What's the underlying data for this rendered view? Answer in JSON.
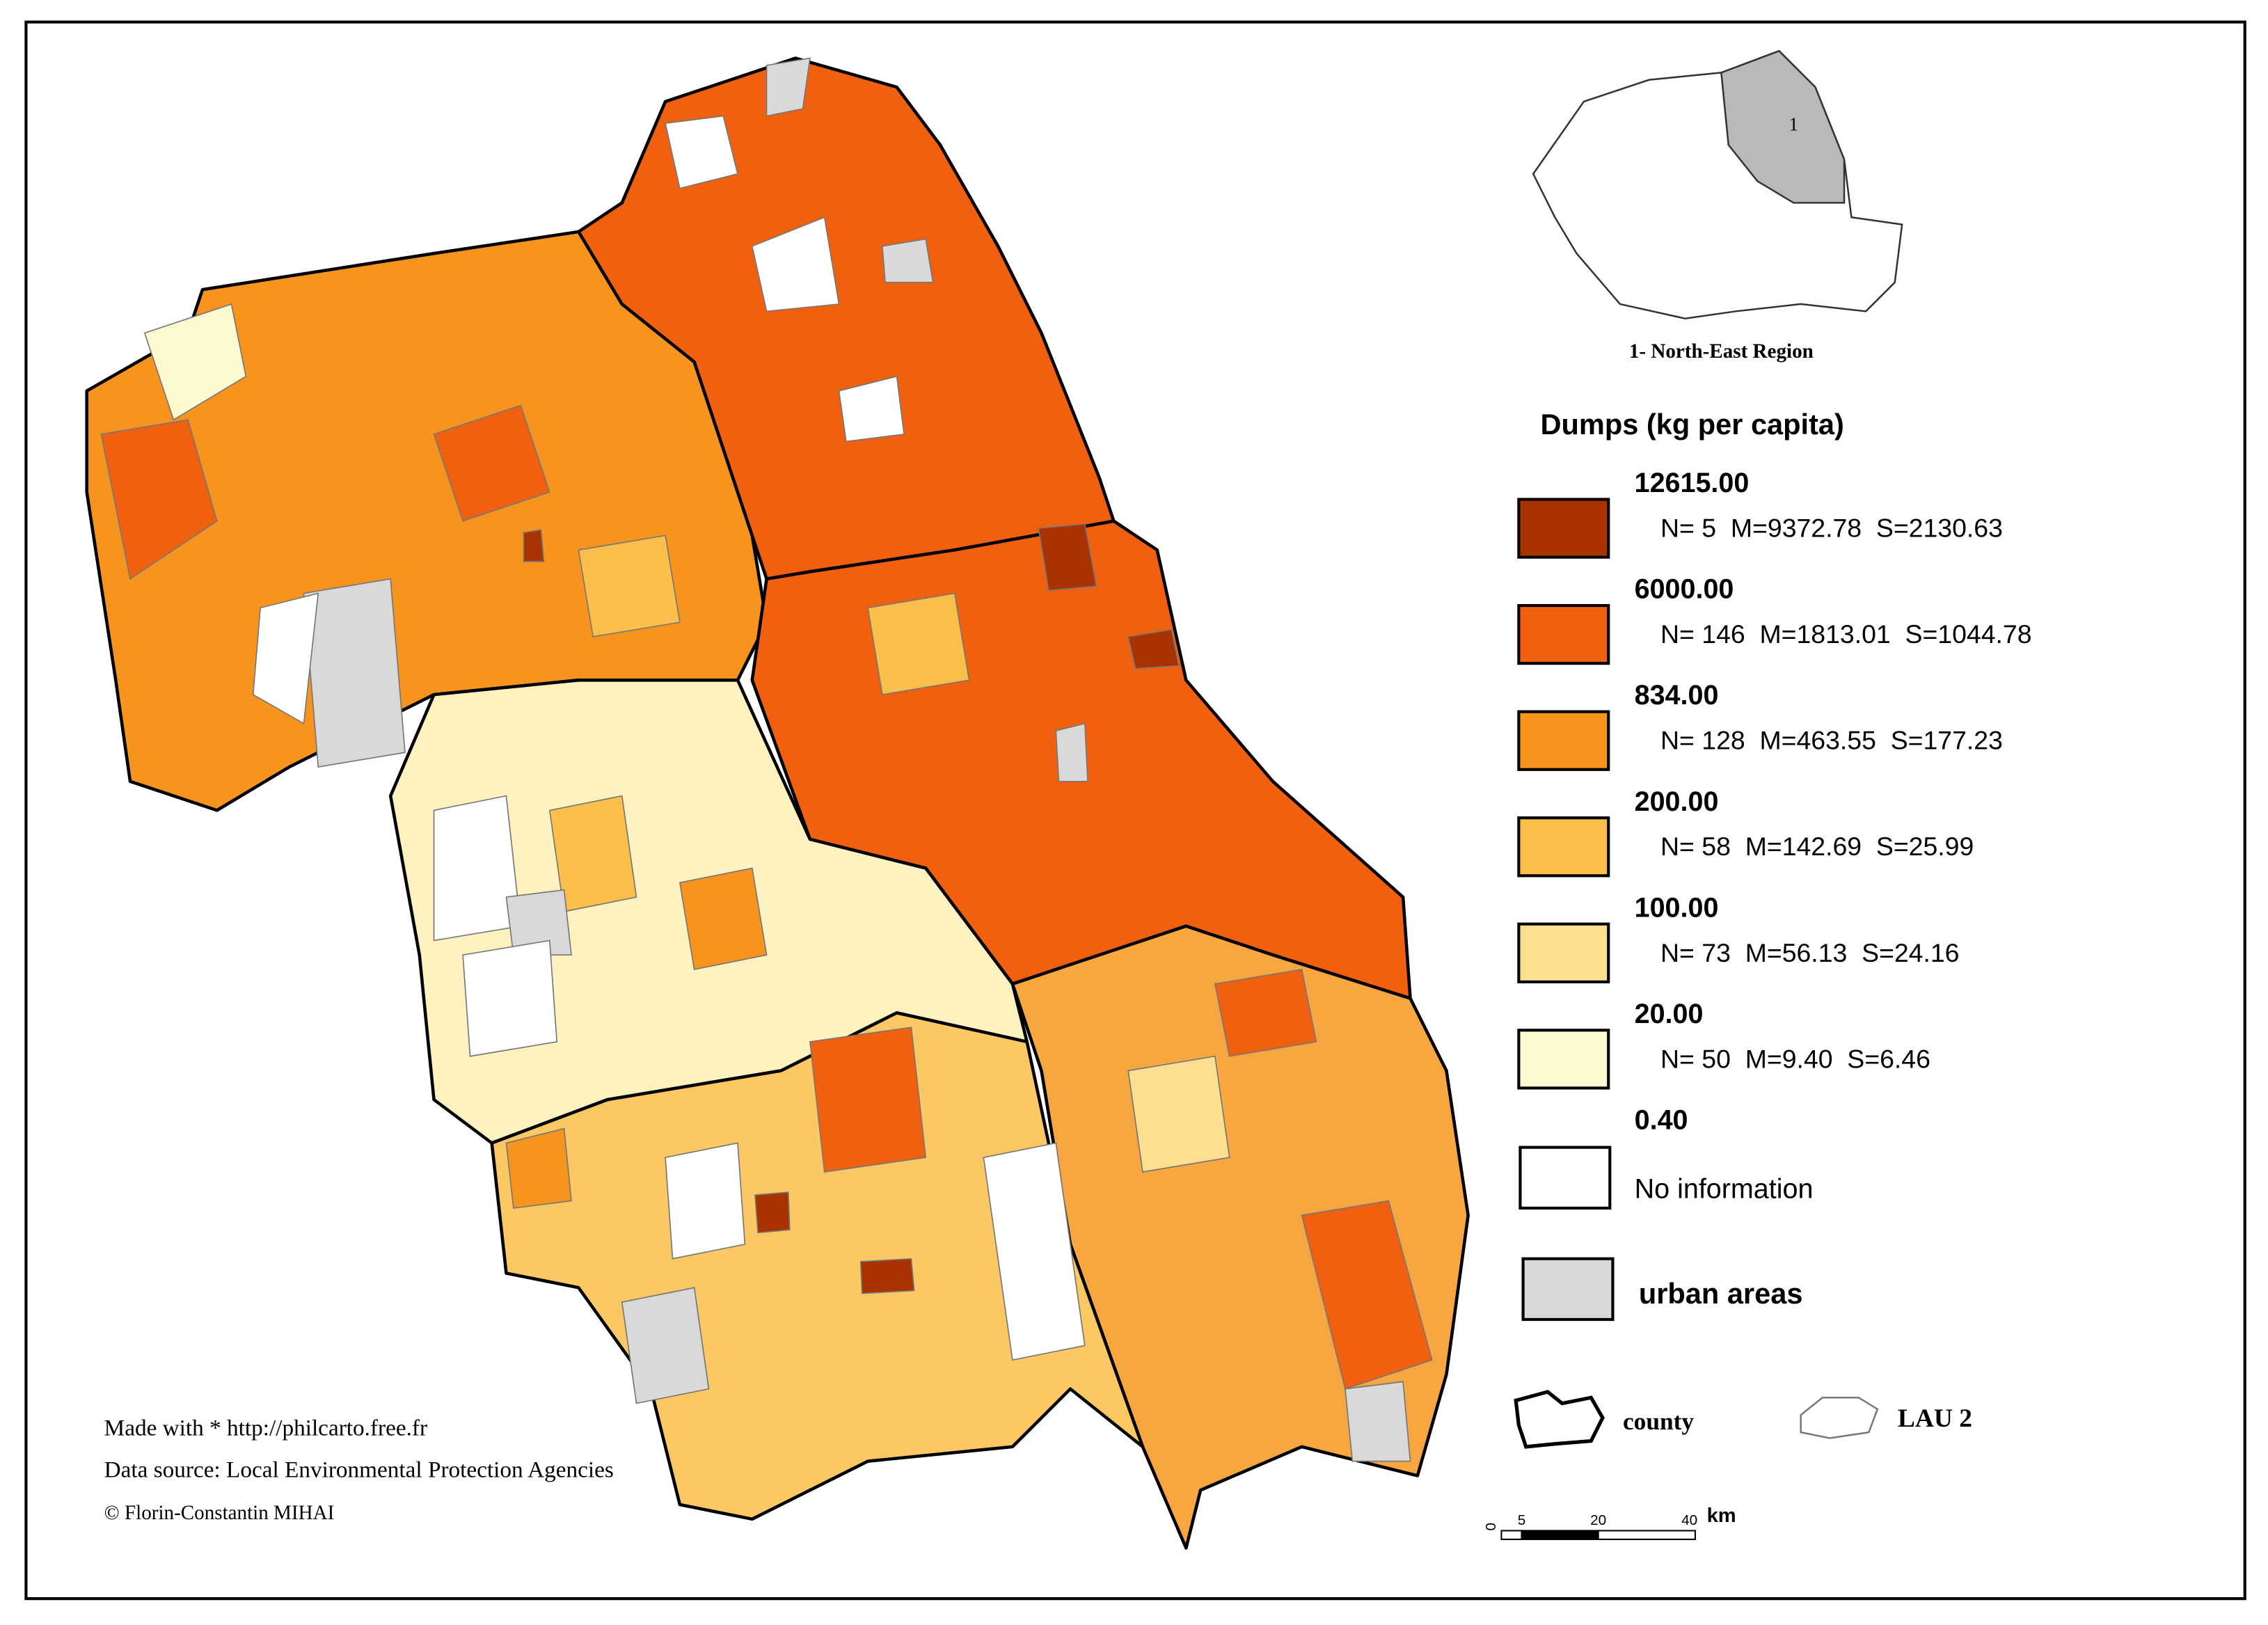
{
  "inset": {
    "region_number": "1",
    "label": "1- North-East Region"
  },
  "legend": {
    "title": "Dumps (kg per capita)",
    "breaks": [
      "12615.00",
      "6000.00",
      "834.00",
      "200.00",
      "100.00",
      "20.00",
      "0.40"
    ],
    "classes": [
      {
        "color": "#a83200",
        "stats": "N= 5  M=9372.78  S=2130.63"
      },
      {
        "color": "#f0600f",
        "stats": "N= 146  M=1813.01  S=1044.78"
      },
      {
        "color": "#f7941d",
        "stats": "N= 128  M=463.55  S=177.23"
      },
      {
        "color": "#fbbf4a",
        "stats": "N= 58  M=142.69  S=25.99"
      },
      {
        "color": "#fde08f",
        "stats": "N= 73  M=56.13  S=24.16"
      },
      {
        "color": "#fefad0",
        "stats": "N= 50  M=9.40  S=6.46"
      }
    ],
    "no_information": {
      "color": "#ffffff",
      "label": "No information"
    },
    "urban_areas": {
      "color": "#d9d9d9",
      "label": "urban areas"
    },
    "county": "county",
    "lau2": "LAU 2"
  },
  "scale_bar": {
    "ticks": [
      "0",
      "5",
      "20",
      "40"
    ],
    "unit": "km"
  },
  "credits": [
    "Made with * http://philcarto.free.fr",
    "Data source: Local Environmental Protection Agencies",
    "©  Florin-Constantin MIHAI"
  ]
}
